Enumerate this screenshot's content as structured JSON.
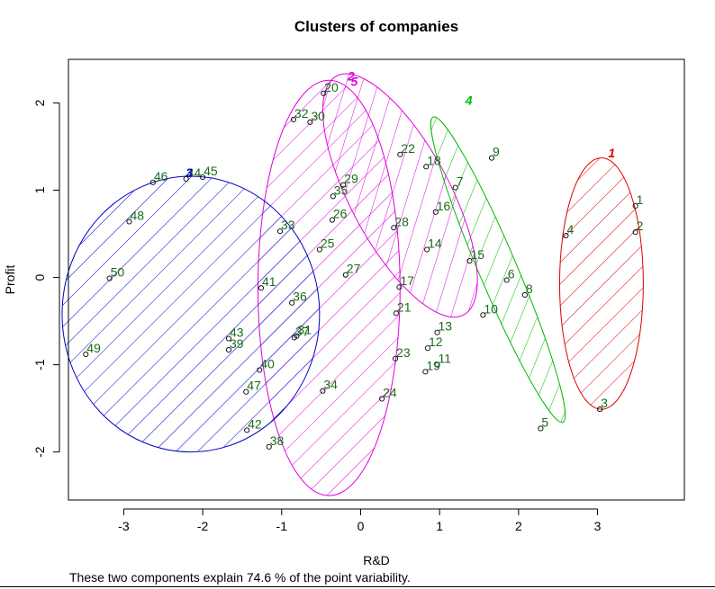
{
  "chart_data": {
    "type": "scatter",
    "title": "Clusters of companies",
    "xlabel": "R&D",
    "ylabel": "Profit",
    "xlim": [
      -3.7,
      4.1
    ],
    "ylim": [
      -2.55,
      2.5
    ],
    "x_ticks": [
      -3,
      -2,
      -1,
      0,
      1,
      2,
      3
    ],
    "y_ticks": [
      -2,
      -1,
      0,
      1,
      2
    ],
    "grid": false,
    "legend": "none",
    "point_label_color": "#1a6b1a",
    "points": [
      {
        "label": "1",
        "x": 3.48,
        "y": 0.82
      },
      {
        "label": "2",
        "x": 3.48,
        "y": 0.52
      },
      {
        "label": "3",
        "x": 3.03,
        "y": -1.51
      },
      {
        "label": "4",
        "x": 2.6,
        "y": 0.48
      },
      {
        "label": "5",
        "x": 2.28,
        "y": -1.73
      },
      {
        "label": "6",
        "x": 1.85,
        "y": -0.03
      },
      {
        "label": "7",
        "x": 1.2,
        "y": 1.03
      },
      {
        "label": "8",
        "x": 2.08,
        "y": -0.2
      },
      {
        "label": "9",
        "x": 1.66,
        "y": 1.37
      },
      {
        "label": "10",
        "x": 1.55,
        "y": -0.43
      },
      {
        "label": "11",
        "x": 0.97,
        "y": -1.0
      },
      {
        "label": "12",
        "x": 0.85,
        "y": -0.81
      },
      {
        "label": "13",
        "x": 0.97,
        "y": -0.63
      },
      {
        "label": "14",
        "x": 0.84,
        "y": 0.32
      },
      {
        "label": "15",
        "x": 1.38,
        "y": 0.19
      },
      {
        "label": "16",
        "x": 0.95,
        "y": 0.75
      },
      {
        "label": "17",
        "x": 0.49,
        "y": -0.11
      },
      {
        "label": "18",
        "x": 0.83,
        "y": 1.27
      },
      {
        "label": "19",
        "x": 0.82,
        "y": -1.08
      },
      {
        "label": "20",
        "x": -0.47,
        "y": 2.11
      },
      {
        "label": "21",
        "x": 0.45,
        "y": -0.41
      },
      {
        "label": "22",
        "x": 0.5,
        "y": 1.41
      },
      {
        "label": "23",
        "x": 0.44,
        "y": -0.93
      },
      {
        "label": "24",
        "x": 0.27,
        "y": -1.39
      },
      {
        "label": "25",
        "x": -0.52,
        "y": 0.32
      },
      {
        "label": "26",
        "x": -0.36,
        "y": 0.66
      },
      {
        "label": "27",
        "x": -0.19,
        "y": 0.03
      },
      {
        "label": "28",
        "x": 0.42,
        "y": 0.57
      },
      {
        "label": "29",
        "x": -0.22,
        "y": 1.06
      },
      {
        "label": "30",
        "x": -0.64,
        "y": 1.78
      },
      {
        "label": "31",
        "x": -0.81,
        "y": -0.67
      },
      {
        "label": "32",
        "x": -0.85,
        "y": 1.81
      },
      {
        "label": "33",
        "x": -1.02,
        "y": 0.53
      },
      {
        "label": "34",
        "x": -0.48,
        "y": -1.3
      },
      {
        "label": "35",
        "x": -0.35,
        "y": 0.93
      },
      {
        "label": "36",
        "x": -0.87,
        "y": -0.29
      },
      {
        "label": "37",
        "x": -0.84,
        "y": -0.69
      },
      {
        "label": "38",
        "x": -1.16,
        "y": -1.94
      },
      {
        "label": "39",
        "x": -1.67,
        "y": -0.83
      },
      {
        "label": "40",
        "x": -1.28,
        "y": -1.06
      },
      {
        "label": "41",
        "x": -1.26,
        "y": -0.12
      },
      {
        "label": "42",
        "x": -1.44,
        "y": -1.75
      },
      {
        "label": "43",
        "x": -1.67,
        "y": -0.7
      },
      {
        "label": "44",
        "x": -2.21,
        "y": 1.13
      },
      {
        "label": "45",
        "x": -2.0,
        "y": 1.15
      },
      {
        "label": "46",
        "x": -2.63,
        "y": 1.09
      },
      {
        "label": "47",
        "x": -1.45,
        "y": -1.31
      },
      {
        "label": "48",
        "x": -2.93,
        "y": 0.64
      },
      {
        "label": "49",
        "x": -3.48,
        "y": -0.88
      },
      {
        "label": "50",
        "x": -3.18,
        "y": -0.01
      }
    ],
    "clusters": [
      {
        "id": "1",
        "color": "#dd0000",
        "cx": 3.05,
        "cy": -0.07,
        "rx": 0.53,
        "ry": 1.44,
        "angle_deg": 0,
        "label_x": 3.18,
        "label_y": 1.43
      },
      {
        "id": "2",
        "color": "#dd00dd",
        "cx": -0.4,
        "cy": -0.12,
        "rx": 0.9,
        "ry": 2.38,
        "angle_deg": 0,
        "label_x": -0.12,
        "label_y": 2.31
      },
      {
        "id": "3",
        "color": "#0000c8",
        "cx": -2.15,
        "cy": -0.42,
        "rx": 1.63,
        "ry": 1.58,
        "angle_deg": 0,
        "label_x": -2.17,
        "label_y": 1.2
      },
      {
        "id": "4",
        "color": "#00bb00",
        "cx": 1.74,
        "cy": 0.09,
        "rx": 0.24,
        "ry": 1.9,
        "angle_deg": 23,
        "label_x": 1.37,
        "label_y": 2.03
      },
      {
        "id": "5",
        "color": "#dd00dd",
        "cx": 0.5,
        "cy": 0.94,
        "rx": 0.63,
        "ry": 1.55,
        "angle_deg": 28,
        "label_x": -0.08,
        "label_y": 2.25
      }
    ],
    "footnote": "These two components explain 74.6 % of the point variability."
  }
}
